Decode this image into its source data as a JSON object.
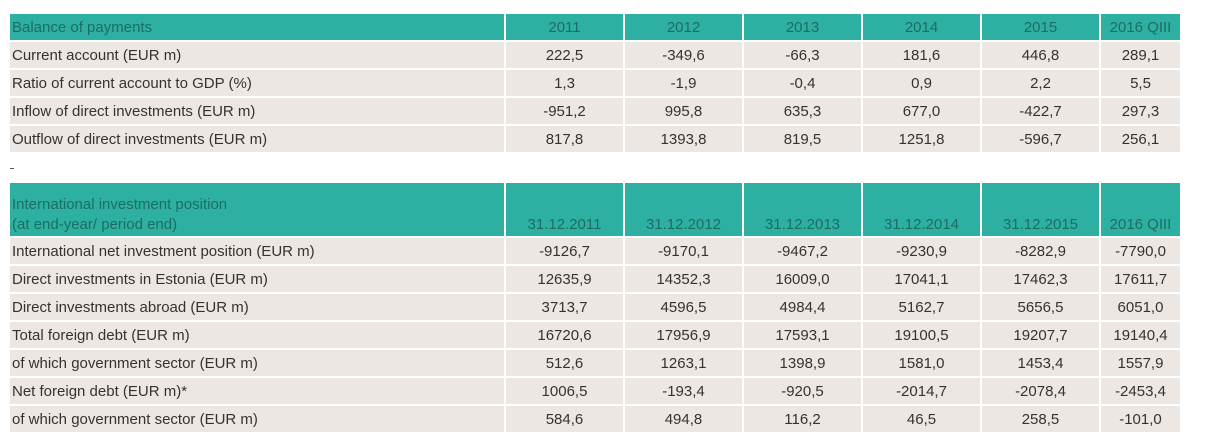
{
  "bop": {
    "header": {
      "label": "Balance of payments",
      "years": [
        "2011",
        "2012",
        "2013",
        "2014",
        "2015",
        "2016 QIII"
      ]
    },
    "rows": [
      {
        "label": "Current account (EUR m)",
        "values": [
          "222,5",
          "-349,6",
          "-66,3",
          "181,6",
          "446,8",
          "289,1"
        ]
      },
      {
        "label": "Ratio of current account to GDP (%)",
        "values": [
          "1,3",
          "-1,9",
          "-0,4",
          "0,9",
          "2,2",
          "5,5"
        ]
      },
      {
        "label": "Inflow of direct investments (EUR m)",
        "values": [
          "-951,2",
          "995,8",
          "635,3",
          "677,0",
          "-422,7",
          "297,3"
        ]
      },
      {
        "label": "Outflow of direct investments (EUR m)",
        "values": [
          "817,8",
          "1393,8",
          "819,5",
          "1251,8",
          "-596,7",
          "256,1"
        ]
      }
    ]
  },
  "iip": {
    "header": {
      "label_line1": "International investment position",
      "label_line2": "(at end-year/ period end)",
      "dates": [
        "31.12.2011",
        "31.12.2012",
        "31.12.2013",
        "31.12.2014",
        "31.12.2015",
        "2016 QIII"
      ]
    },
    "rows": [
      {
        "label": "International net investment position (EUR m)",
        "values": [
          "-9126,7",
          "-9170,1",
          "-9467,2",
          "-9230,9",
          "-8282,9",
          "-7790,0"
        ]
      },
      {
        "label": "Direct investments in Estonia (EUR m)",
        "values": [
          "12635,9",
          "14352,3",
          "16009,0",
          "17041,1",
          "17462,3",
          "17611,7"
        ]
      },
      {
        "label": "Direct investments abroad (EUR m)",
        "values": [
          "3713,7",
          "4596,5",
          "4984,4",
          "5162,7",
          "5656,5",
          "6051,0"
        ]
      },
      {
        "label": "Total foreign debt (EUR m)",
        "values": [
          "16720,6",
          "17956,9",
          "17593,1",
          "19100,5",
          "19207,7",
          "19140,4"
        ]
      },
      {
        "label": "of which government sector (EUR m)",
        "values": [
          "512,6",
          "1263,1",
          "1398,9",
          "1581,0",
          "1453,4",
          "1557,9"
        ]
      },
      {
        "label": "Net foreign debt (EUR m)*",
        "values": [
          "1006,5",
          "-193,4",
          "-920,5",
          "-2014,7",
          "-2078,4",
          "-2453,4"
        ]
      },
      {
        "label": "of which government sector (EUR m)",
        "values": [
          "584,6",
          "494,8",
          "116,2",
          "46,5",
          "258,5",
          "-101,0"
        ]
      }
    ]
  },
  "colors": {
    "header_bg": "#2db0a1",
    "header_text": "#1d6d64",
    "row_bg": "#ece7e2",
    "row_text": "#333333"
  }
}
